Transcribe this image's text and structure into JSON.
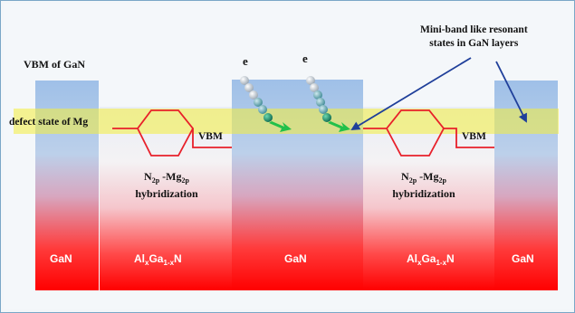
{
  "labels": {
    "vbm_of_gan": "VBM of GaN",
    "defect_state": "defect state of Mg",
    "mini_band_line1": "Mini-band like resonant",
    "mini_band_line2": "states in GaN layers",
    "electron": "e",
    "vbm": "VBM",
    "hyb_n": "N",
    "hyb_n_sub": "2p",
    "hyb_mg": " -Mg",
    "hyb_mg_sub": "2p",
    "hybridization": "hybridization",
    "gan": "GaN",
    "al": "Al",
    "al_sub": "x",
    "ga": "Ga",
    "ga_sub": "1-x",
    "n": "N"
  },
  "colors": {
    "gan_top": "#9fbfe6",
    "algan_top": "#ffffff",
    "band_bottom": "#ff0000",
    "defect_band": "#f4ef3a",
    "red_line": "#e8202a",
    "arrow": "#1f3f9a",
    "green_arrow": "#22c04a"
  }
}
